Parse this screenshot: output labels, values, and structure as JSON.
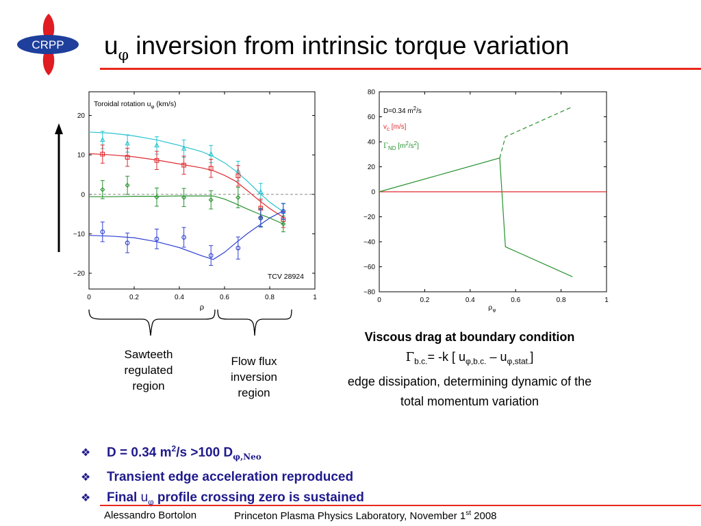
{
  "logo": {
    "text": "CRPP",
    "colors": {
      "ellipse": "#1e3f9c",
      "petals": "#e11b22",
      "text": "#ffffff"
    }
  },
  "title": {
    "u": "u",
    "phi": "φ",
    "rest": " inversion from intrinsic torque variation"
  },
  "colors": {
    "accent_red": "#e8261a",
    "bullet_blue": "#1f1a8c"
  },
  "chart_data": [
    {
      "type": "line",
      "annotation_top": "Toroidal rotation u",
      "annotation_top_sub": "φ",
      "annotation_top_unit": " (km/s)",
      "annotation_bottom": "TCV 28924",
      "xlabel": "ρ",
      "xlim": [
        0,
        1
      ],
      "ylim": [
        -24,
        26
      ],
      "xticks": [
        0,
        0.2,
        0.4,
        0.6,
        0.8,
        1
      ],
      "xtick_labels": [
        "0",
        "0.2",
        "0.4",
        "0.6",
        "0.8",
        "1"
      ],
      "yticks": [
        20,
        10,
        0,
        -10,
        -20
      ],
      "ytick_labels": [
        "20",
        "10",
        "0",
        "−10",
        "−20"
      ],
      "zero_line": "dashed",
      "series": [
        {
          "color": "#27c3cf",
          "marker": "triangle",
          "x": [
            0.06,
            0.17,
            0.3,
            0.42,
            0.54,
            0.66,
            0.76,
            0.86
          ],
          "y": [
            13.8,
            12.9,
            12.4,
            11.6,
            10.2,
            5.9,
            0.6,
            -4.4
          ],
          "err": [
            2.2,
            2.2,
            2.2,
            2.2,
            2.2,
            2.5,
            2.2,
            2.0
          ],
          "fit_x": [
            0,
            0.1,
            0.2,
            0.3,
            0.4,
            0.5,
            0.55,
            0.6,
            0.65,
            0.7,
            0.75,
            0.8,
            0.86
          ],
          "fit_y": [
            15.8,
            15.5,
            14.8,
            13.8,
            12.4,
            10.8,
            9.6,
            8.0,
            5.9,
            3.4,
            0.6,
            -2.0,
            -4.4
          ]
        },
        {
          "color": "#e0282d",
          "marker": "square",
          "x": [
            0.06,
            0.17,
            0.3,
            0.42,
            0.54,
            0.66,
            0.76,
            0.86
          ],
          "y": [
            10.2,
            9.4,
            8.6,
            7.4,
            6.6,
            4.7,
            -3.5,
            -6.4
          ],
          "err": [
            2.3,
            2.3,
            2.3,
            2.3,
            2.3,
            2.6,
            2.3,
            2.0
          ],
          "fit_x": [
            0,
            0.1,
            0.2,
            0.3,
            0.4,
            0.5,
            0.55,
            0.6,
            0.65,
            0.7,
            0.75,
            0.8,
            0.86
          ],
          "fit_y": [
            10.3,
            10.0,
            9.5,
            8.7,
            7.7,
            6.7,
            6.0,
            4.8,
            3.3,
            1.0,
            -1.4,
            -3.6,
            -5.8
          ]
        },
        {
          "color": "#26912e",
          "marker": "diamond",
          "x": [
            0.06,
            0.17,
            0.3,
            0.42,
            0.54,
            0.66,
            0.76,
            0.86
          ],
          "y": [
            1.2,
            2.3,
            -0.7,
            -0.8,
            -1.4,
            -0.8,
            -5.8,
            -7.5
          ],
          "err": [
            2.3,
            2.3,
            2.3,
            2.3,
            2.3,
            2.6,
            2.3,
            2.0
          ],
          "fit_x": [
            0,
            0.1,
            0.2,
            0.3,
            0.4,
            0.5,
            0.55,
            0.6,
            0.65,
            0.7,
            0.75,
            0.8,
            0.86
          ],
          "fit_y": [
            -0.6,
            -0.6,
            -0.5,
            -0.5,
            -0.4,
            -0.4,
            -0.4,
            -1.2,
            -2.4,
            -3.7,
            -4.9,
            -6.0,
            -7.5
          ]
        },
        {
          "color": "#2c3fd2",
          "marker": "circle",
          "x": [
            0.06,
            0.17,
            0.3,
            0.42,
            0.54,
            0.66,
            0.76,
            0.86
          ],
          "y": [
            -9.5,
            -12.3,
            -11.3,
            -10.9,
            -15.5,
            -13.6,
            -6.0,
            -4.3
          ],
          "err": [
            2.5,
            2.5,
            2.5,
            2.5,
            2.5,
            2.8,
            2.3,
            2.0
          ],
          "fit_x": [
            0,
            0.1,
            0.2,
            0.3,
            0.4,
            0.5,
            0.55,
            0.6,
            0.65,
            0.7,
            0.75,
            0.8,
            0.86
          ],
          "fit_y": [
            -10.4,
            -10.6,
            -11.0,
            -12.0,
            -13.5,
            -15.6,
            -16.5,
            -14.7,
            -12.3,
            -10.0,
            -8.0,
            -6.0,
            -4.2
          ]
        }
      ]
    },
    {
      "type": "line",
      "xlabel": "ρ",
      "xlabel_sub": "ψ",
      "xlim": [
        0,
        1
      ],
      "ylim": [
        -80,
        80
      ],
      "xticks": [
        0,
        0.2,
        0.4,
        0.6,
        0.8,
        1
      ],
      "xtick_labels": [
        "0",
        "0.2",
        "0.4",
        "0.6",
        "0.8",
        "1"
      ],
      "yticks": [
        80,
        60,
        40,
        20,
        0,
        -20,
        -40,
        -60,
        -80
      ],
      "ytick_labels": [
        "80",
        "60",
        "40",
        "20",
        "0",
        "−20",
        "−40",
        "−60",
        "−80"
      ],
      "annotations": [
        {
          "text": "D=0.34 m",
          "sup": "2",
          "tail": "/s",
          "color": "#000000"
        },
        {
          "text": "v",
          "sub": "c",
          "tail": " [m/s]",
          "color": "#e0282d"
        },
        {
          "text": "Γ",
          "sub": "ND",
          "tail": " [m",
          "sup": "2",
          "tail2": "/s",
          "sup2": "2",
          "tail3": "]",
          "color": "#26912e"
        }
      ],
      "series": [
        {
          "color": "#e0282d",
          "style": "solid",
          "x": [
            0,
            1
          ],
          "y": [
            0,
            0
          ]
        },
        {
          "color": "#26912e",
          "style": "solid",
          "x": [
            0,
            0.53,
            0.555,
            0.85
          ],
          "y": [
            0,
            27,
            -44,
            -68
          ]
        },
        {
          "color": "#26912e",
          "style": "dashed",
          "x": [
            0.53,
            0.555,
            0.85
          ],
          "y": [
            27,
            44,
            68
          ]
        }
      ]
    }
  ],
  "regions": {
    "sawteeth": [
      "Sawteeth",
      "regulated",
      "region"
    ],
    "flow": [
      "Flow flux",
      "inversion",
      "region"
    ]
  },
  "right_caption": {
    "title": "Viscous drag at boundary condition",
    "gamma": "Γ",
    "gamma_sub": "b.c.",
    "eq_mid": "= -k [ u",
    "u1_sub": "φ,b.c.",
    "dash": " – u",
    "u2_sub": "φ,stat.",
    "close": "]",
    "line3": "edge dissipation, determining dynamic of the",
    "line4": "total momentum variation"
  },
  "bullets": [
    {
      "mark": "❖",
      "pre": "D = 0.34 m",
      "sup": "2",
      "mid": "/s >100 D",
      "sub": "φ,Neo"
    },
    {
      "mark": "❖",
      "text": "Transient edge acceleration reproduced"
    },
    {
      "mark": "❖",
      "pre": "Final ",
      "u": "u",
      "sub": "φ",
      "post": " profile crossing zero is sustained"
    }
  ],
  "footer": {
    "author": "Alessandro Bortolon",
    "venue_pre": "Princeton Plasma Physics Laboratory, November 1",
    "venue_sup": "st",
    "venue_post": " 2008"
  }
}
